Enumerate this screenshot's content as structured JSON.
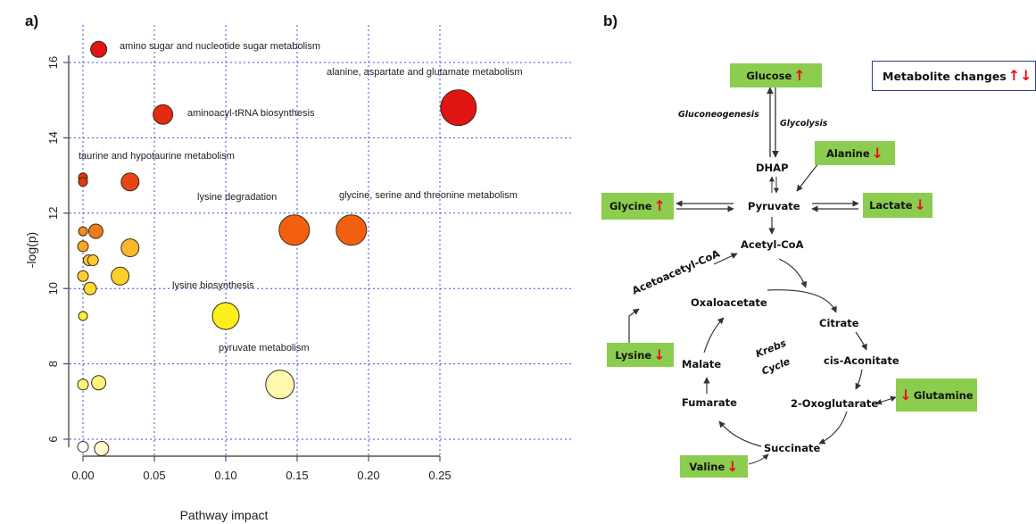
{
  "panel_a_label": "a)",
  "panel_b_label": "b)",
  "chart_data": {
    "type": "scatter",
    "title": "",
    "xlabel": "Pathway impact",
    "ylabel": "-log(p)",
    "xlim": [
      -0.01,
      0.275
    ],
    "ylim": [
      5.6,
      16.6
    ],
    "x_ticks": [
      "0.00",
      "0.05",
      "0.10",
      "0.15",
      "0.20",
      "0.25"
    ],
    "y_ticks": [
      "6",
      "8",
      "10",
      "12",
      "14",
      "16"
    ],
    "grid": "dotted blue at ticks",
    "points": [
      {
        "x": 0.011,
        "y": 16.35,
        "r": 9,
        "color": "#e11414",
        "label": "amino sugar and nucleotide sugar metabolism"
      },
      {
        "x": 0.263,
        "y": 14.8,
        "r": 20,
        "color": "#e11414",
        "label": "alanine, aspartate and glutamate metabolism"
      },
      {
        "x": 0.056,
        "y": 14.62,
        "r": 11,
        "color": "#e52a12",
        "label": "aminoacyl-tRNA biosynthesis"
      },
      {
        "x": 0.0,
        "y": 12.95,
        "r": 5,
        "color": "#e33812",
        "label": "taurine and hypotaurine metabolism"
      },
      {
        "x": 0.0,
        "y": 12.83,
        "r": 5,
        "color": "#e33812",
        "label": ""
      },
      {
        "x": 0.033,
        "y": 12.83,
        "r": 10,
        "color": "#e6451a",
        "label": ""
      },
      {
        "x": 0.148,
        "y": 11.55,
        "r": 17,
        "color": "#f2600f",
        "label": "lysine degradation"
      },
      {
        "x": 0.188,
        "y": 11.55,
        "r": 17,
        "color": "#f2600f",
        "label": "glycine, serine and threonine metabolism"
      },
      {
        "x": 0.0,
        "y": 11.52,
        "r": 5,
        "color": "#f58a1f",
        "label": ""
      },
      {
        "x": 0.009,
        "y": 11.52,
        "r": 8,
        "color": "#f27a19",
        "label": ""
      },
      {
        "x": 0.0,
        "y": 11.12,
        "r": 6,
        "color": "#f8a626",
        "label": ""
      },
      {
        "x": 0.033,
        "y": 11.08,
        "r": 10,
        "color": "#f8b82b",
        "label": ""
      },
      {
        "x": 0.004,
        "y": 10.75,
        "r": 6,
        "color": "#fbc830",
        "label": ""
      },
      {
        "x": 0.007,
        "y": 10.75,
        "r": 6,
        "color": "#fbc830",
        "label": ""
      },
      {
        "x": 0.0,
        "y": 10.33,
        "r": 6,
        "color": "#fbcf2e",
        "label": ""
      },
      {
        "x": 0.026,
        "y": 10.33,
        "r": 10,
        "color": "#f9d02c",
        "label": ""
      },
      {
        "x": 0.005,
        "y": 10.0,
        "r": 7,
        "color": "#fbdc2f",
        "label": ""
      },
      {
        "x": 0.1,
        "y": 9.27,
        "r": 15,
        "color": "#fbf01c",
        "label": "lysine biosynthesis"
      },
      {
        "x": 0.0,
        "y": 9.27,
        "r": 5,
        "color": "#fbef3a",
        "label": ""
      },
      {
        "x": 0.138,
        "y": 7.45,
        "r": 16,
        "color": "#fffab0",
        "label": "pyruvate metabolism"
      },
      {
        "x": 0.0,
        "y": 7.45,
        "r": 6,
        "color": "#fdf57a",
        "label": ""
      },
      {
        "x": 0.011,
        "y": 7.5,
        "r": 8,
        "color": "#fdf27a",
        "label": ""
      },
      {
        "x": 0.0,
        "y": 5.8,
        "r": 6,
        "color": "#ffffff",
        "label": ""
      },
      {
        "x": 0.013,
        "y": 5.75,
        "r": 8,
        "color": "#fffbd4",
        "label": ""
      }
    ]
  },
  "diagram": {
    "legend_title": "Metabolite changes",
    "legend_arrows": "↑↓",
    "boxes": [
      {
        "key": "glucose",
        "label": "Glucose",
        "arrow": "↑"
      },
      {
        "key": "alanine",
        "label": "Alanine",
        "arrow": "↓"
      },
      {
        "key": "glycine",
        "label": "Glycine",
        "arrow": "↑"
      },
      {
        "key": "lactate",
        "label": "Lactate",
        "arrow": "↓"
      },
      {
        "key": "lysine",
        "label": "Lysine",
        "arrow": "↓"
      },
      {
        "key": "glutamine",
        "label": "Glutamine",
        "arrow": "↓"
      },
      {
        "key": "valine",
        "label": "Valine",
        "arrow": "↓"
      }
    ],
    "labels": {
      "gluconeogenesis": "Gluconeogenesis",
      "glycolysis": "Glycolysis",
      "dhap": "DHAP",
      "pyruvate": "Pyruvate",
      "acetyl_coa": "Acetyl-CoA",
      "acetoacetyl_coa": "Acetoacetyl-CoA",
      "oxaloacetate": "Oxaloacetate",
      "citrate": "Citrate",
      "cis_aconitate": "cis-Aconitate",
      "oxoglutarate": "2-Oxoglutarate",
      "succinate": "Succinate",
      "fumarate": "Fumarate",
      "malate": "Malate",
      "krebs_1": "Krebs",
      "krebs_2": "Cycle"
    }
  }
}
